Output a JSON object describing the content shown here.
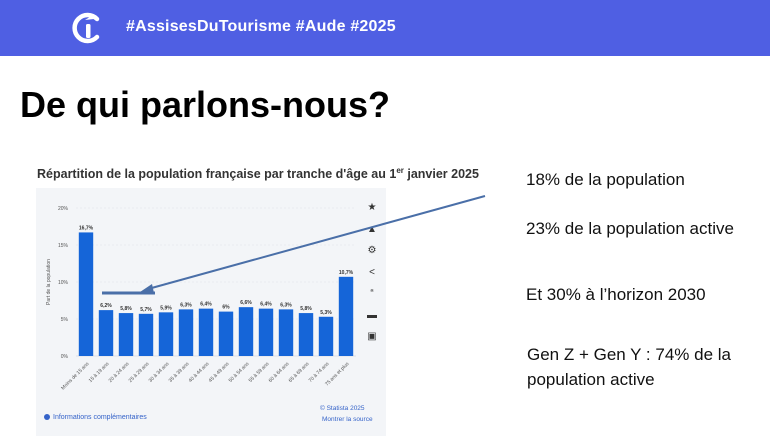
{
  "header": {
    "hashtags": "#AssisesDuTourisme #Aude #2025",
    "background": "#4f5fe3"
  },
  "slide": {
    "title": "De qui parlons-nous?"
  },
  "chart": {
    "title_main": "Répartition de la population française par tranche d'âge au 1",
    "title_sup": "er",
    "title_end": " janvier 2025",
    "info_link": "Informations complémentaires",
    "statista": "© Statista 2025",
    "source_link": "Montrer la source",
    "tools": [
      "star-icon",
      "bell-icon",
      "gear-icon",
      "share-icon",
      "quote-icon",
      "flag-icon",
      "print-icon"
    ]
  },
  "chart_data": {
    "type": "bar",
    "title": "Répartition de la population française par tranche d'âge au 1er janvier 2025",
    "ylabel": "Part de la population",
    "categories": [
      "Moins de 15 ans",
      "15 à 19 ans",
      "20 à 24 ans",
      "25 à 29 ans",
      "30 à 34 ans",
      "35 à 39 ans",
      "40 à 44 ans",
      "45 à 49 ans",
      "50 à 54 ans",
      "55 à 59 ans",
      "60 à 64 ans",
      "65 à 69 ans",
      "70 à 74 ans",
      "75 ans et plus"
    ],
    "values": [
      16.7,
      6.2,
      5.8,
      5.7,
      5.9,
      6.3,
      6.4,
      6,
      6.6,
      6.4,
      6.3,
      5.8,
      5.3,
      10.7
    ],
    "value_labels": [
      "16,7%",
      "6,2%",
      "5,8%",
      "5,7%",
      "5,9%",
      "6,3%",
      "6,4%",
      "6%",
      "6,6%",
      "6,4%",
      "6,3%",
      "5,8%",
      "5,3%",
      "10,7%"
    ],
    "yticks": [
      0,
      5,
      10,
      15,
      20
    ],
    "ytick_labels": [
      "0%",
      "5%",
      "10%",
      "15%",
      "20%"
    ],
    "ylim": [
      0,
      20
    ],
    "bar_color": "#1565d8"
  },
  "facts": {
    "f1": "18% de la population",
    "f2": "23% de la population active",
    "f3": "Et 30% à l’horizon 2030",
    "f4": "Gen Z + Gen Y : 74% de la population active"
  }
}
